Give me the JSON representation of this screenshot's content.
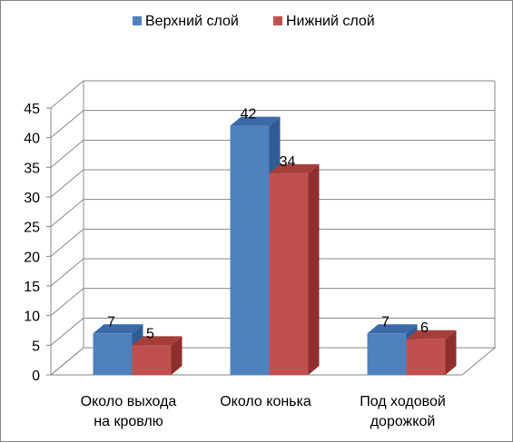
{
  "chart_data": {
    "type": "bar",
    "categories": [
      "Около выхода\nна кровлю",
      "Около конька",
      "Под ходовой\nдорожкой"
    ],
    "series": [
      {
        "name": "Верхний слой",
        "values": [
          7,
          42,
          7
        ],
        "color": "#4F81BD",
        "side": "#2F5C93",
        "top": "#3A6AA8"
      },
      {
        "name": "Нижний слой",
        "values": [
          5,
          34,
          6
        ],
        "color": "#C0504D",
        "side": "#8C2F2D",
        "top": "#A53E3B"
      }
    ],
    "ylim": [
      0,
      45
    ],
    "yticks": [
      0,
      5,
      10,
      15,
      20,
      25,
      30,
      35,
      40,
      45
    ],
    "grid": true,
    "legend_position": "top",
    "style": "3d-clustered-column"
  }
}
